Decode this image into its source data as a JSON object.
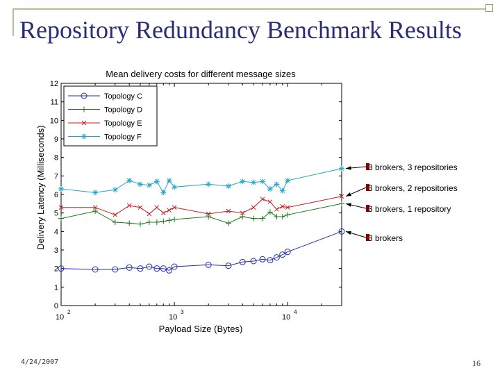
{
  "slide": {
    "title": "Repository Redundancy Benchmark Results",
    "date": "4/24/2007",
    "page_number": "16"
  },
  "chart_data": {
    "type": "line",
    "title": "Mean delivery costs for different message sizes",
    "xlabel": "Payload Size (Bytes)",
    "ylabel": "Delivery Latency (Milliseconds)",
    "xscale": "log",
    "xlim": [
      100,
      30000
    ],
    "ylim": [
      0,
      12
    ],
    "yticks": [
      0,
      1,
      2,
      3,
      4,
      5,
      6,
      7,
      8,
      9,
      10,
      11,
      12
    ],
    "xticks": [
      {
        "base": "10",
        "exp": "2",
        "value": 100
      },
      {
        "base": "10",
        "exp": "3",
        "value": 1000
      },
      {
        "base": "10",
        "exp": "4",
        "value": 10000
      }
    ],
    "legend_position": "top-left",
    "series": [
      {
        "name": "Topology C",
        "color": "#1f2fb0",
        "marker": "circle",
        "points": [
          [
            100,
            2.0
          ],
          [
            200,
            1.95
          ],
          [
            300,
            1.95
          ],
          [
            400,
            2.05
          ],
          [
            500,
            2.0
          ],
          [
            600,
            2.1
          ],
          [
            700,
            2.0
          ],
          [
            800,
            2.0
          ],
          [
            900,
            1.9
          ],
          [
            1000,
            2.1
          ],
          [
            2000,
            2.2
          ],
          [
            3000,
            2.15
          ],
          [
            4000,
            2.35
          ],
          [
            5000,
            2.4
          ],
          [
            6000,
            2.5
          ],
          [
            7000,
            2.45
          ],
          [
            8000,
            2.6
          ],
          [
            9000,
            2.75
          ],
          [
            10000,
            2.9
          ],
          [
            30000,
            4.0
          ]
        ]
      },
      {
        "name": "Topology D",
        "color": "#1a7a1a",
        "marker": "plus",
        "points": [
          [
            100,
            4.7
          ],
          [
            200,
            5.1
          ],
          [
            300,
            4.5
          ],
          [
            400,
            4.45
          ],
          [
            500,
            4.4
          ],
          [
            600,
            4.5
          ],
          [
            700,
            4.5
          ],
          [
            800,
            4.55
          ],
          [
            900,
            4.6
          ],
          [
            1000,
            4.65
          ],
          [
            2000,
            4.8
          ],
          [
            3000,
            4.45
          ],
          [
            4000,
            4.8
          ],
          [
            5000,
            4.7
          ],
          [
            6000,
            4.7
          ],
          [
            7000,
            5.05
          ],
          [
            8000,
            4.8
          ],
          [
            9000,
            4.8
          ],
          [
            10000,
            4.9
          ],
          [
            30000,
            5.5
          ]
        ]
      },
      {
        "name": "Topology E",
        "color": "#c81e1e",
        "marker": "x",
        "points": [
          [
            100,
            5.3
          ],
          [
            200,
            5.3
          ],
          [
            300,
            4.9
          ],
          [
            400,
            5.4
          ],
          [
            500,
            5.3
          ],
          [
            600,
            4.95
          ],
          [
            700,
            5.3
          ],
          [
            800,
            5.0
          ],
          [
            900,
            5.15
          ],
          [
            1000,
            5.3
          ],
          [
            2000,
            4.95
          ],
          [
            3000,
            5.1
          ],
          [
            4000,
            5.0
          ],
          [
            5000,
            5.3
          ],
          [
            6000,
            5.75
          ],
          [
            7000,
            5.6
          ],
          [
            8000,
            5.2
          ],
          [
            9000,
            5.35
          ],
          [
            10000,
            5.3
          ],
          [
            30000,
            5.9
          ]
        ]
      },
      {
        "name": "Topology F",
        "color": "#22a6c8",
        "marker": "star",
        "points": [
          [
            100,
            6.3
          ],
          [
            200,
            6.1
          ],
          [
            300,
            6.25
          ],
          [
            400,
            6.75
          ],
          [
            500,
            6.55
          ],
          [
            600,
            6.5
          ],
          [
            700,
            6.7
          ],
          [
            800,
            6.1
          ],
          [
            900,
            6.75
          ],
          [
            1000,
            6.4
          ],
          [
            2000,
            6.55
          ],
          [
            3000,
            6.45
          ],
          [
            4000,
            6.7
          ],
          [
            5000,
            6.65
          ],
          [
            6000,
            6.7
          ],
          [
            7000,
            6.3
          ],
          [
            8000,
            6.55
          ],
          [
            9000,
            6.2
          ],
          [
            10000,
            6.75
          ],
          [
            30000,
            7.4
          ]
        ]
      }
    ],
    "annotations": [
      {
        "text": "3 brokers, 3 repositories",
        "x": 30000,
        "y": 7.4
      },
      {
        "text": "3 brokers, 2 repositories",
        "x": 30000,
        "y": 5.9
      },
      {
        "text": "3 brokers, 1 repository",
        "x": 30000,
        "y": 5.5
      },
      {
        "text": "3 brokers",
        "x": 30000,
        "y": 4.0
      }
    ]
  }
}
